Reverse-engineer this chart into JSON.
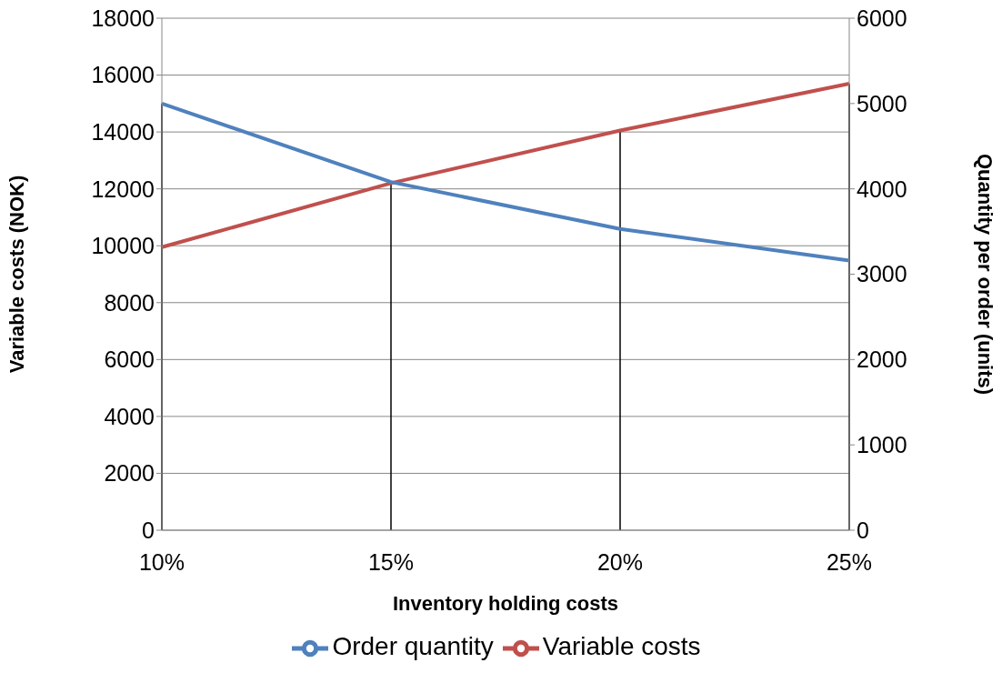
{
  "chart_data": {
    "type": "line",
    "xlabel": "Inventory holding costs",
    "ylabel": "Variable costs (NOK)",
    "y2label": "Quantity per order (units)",
    "categories": [
      "10%",
      "15%",
      "20%",
      "25%"
    ],
    "series": [
      {
        "name": "Variable costs",
        "color": "#c0504d",
        "values": [
          9950,
          12200,
          14050,
          15700
        ]
      },
      {
        "name": "Order quantity",
        "color": "#4f81bd",
        "values": [
          5000,
          4080,
          3530,
          3160
        ],
        "axis": "y2"
      }
    ],
    "ylim": [
      0,
      18000
    ],
    "yticks": [
      0,
      2000,
      4000,
      6000,
      8000,
      10000,
      12000,
      14000,
      16000,
      18000
    ],
    "y2lim": [
      0,
      6000
    ],
    "y2ticks": [
      0,
      1000,
      2000,
      3000,
      4000,
      5000,
      6000
    ],
    "ref_lines": [
      {
        "axis": "x",
        "value": "10%",
        "color": "#000000"
      },
      {
        "axis": "x",
        "value": "15%",
        "color": "#000000"
      },
      {
        "axis": "x",
        "value": "20%",
        "color": "#000000"
      },
      {
        "axis": "x",
        "value": "25%",
        "color": "#000000"
      }
    ],
    "grid": "y",
    "legend": "bottom",
    "marker": "none",
    "line_style": "solid"
  }
}
